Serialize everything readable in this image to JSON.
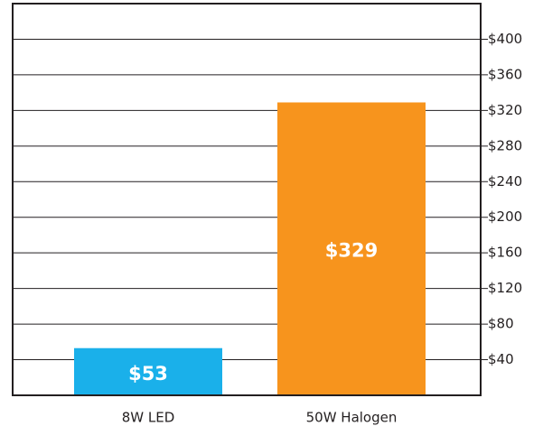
{
  "chart_data": {
    "type": "bar",
    "categories": [
      "8W LED",
      "50W Halogen"
    ],
    "values": [
      53,
      329
    ],
    "value_labels": [
      "$53",
      "$329"
    ],
    "colors": [
      "#1ab0ea",
      "#f7941d"
    ],
    "ylim": [
      0,
      440
    ],
    "yticks": [
      {
        "value": 40,
        "label": "$40"
      },
      {
        "value": 80,
        "label": "$80"
      },
      {
        "value": 120,
        "label": "$120"
      },
      {
        "value": 160,
        "label": "$160"
      },
      {
        "value": 200,
        "label": "$200"
      },
      {
        "value": 240,
        "label": "$240"
      },
      {
        "value": 280,
        "label": "$280"
      },
      {
        "value": 320,
        "label": "$320"
      },
      {
        "value": 360,
        "label": "$360"
      },
      {
        "value": 400,
        "label": "$400"
      }
    ],
    "grid": true
  }
}
